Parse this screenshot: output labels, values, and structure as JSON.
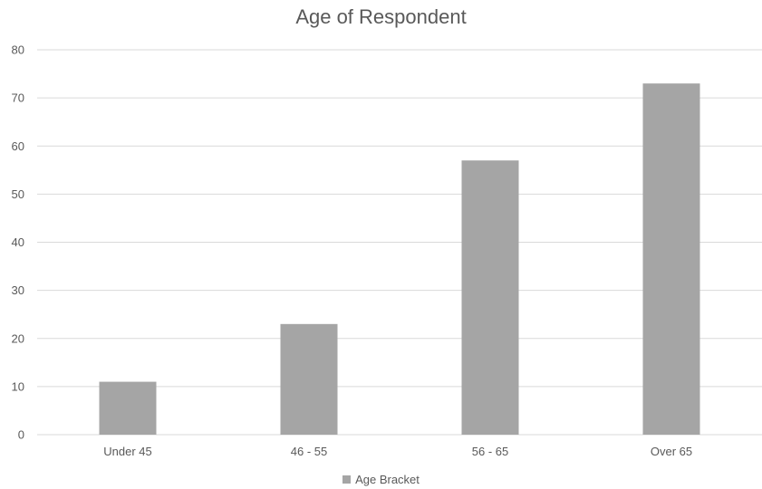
{
  "chart_data": {
    "type": "bar",
    "title": "Age of Respondent",
    "categories": [
      "Under 45",
      "46 - 55",
      "56 - 65",
      "Over 65"
    ],
    "series": [
      {
        "name": "Age Bracket",
        "values": [
          11,
          23,
          57,
          73
        ],
        "color": "#a5a5a5"
      }
    ],
    "ylim": [
      0,
      80
    ],
    "yticks": [
      0,
      10,
      20,
      30,
      40,
      50,
      60,
      70,
      80
    ],
    "grid": true,
    "legend": "bottom",
    "gridColor": "#d9d9d9",
    "axisColor": "#d9d9d9"
  }
}
